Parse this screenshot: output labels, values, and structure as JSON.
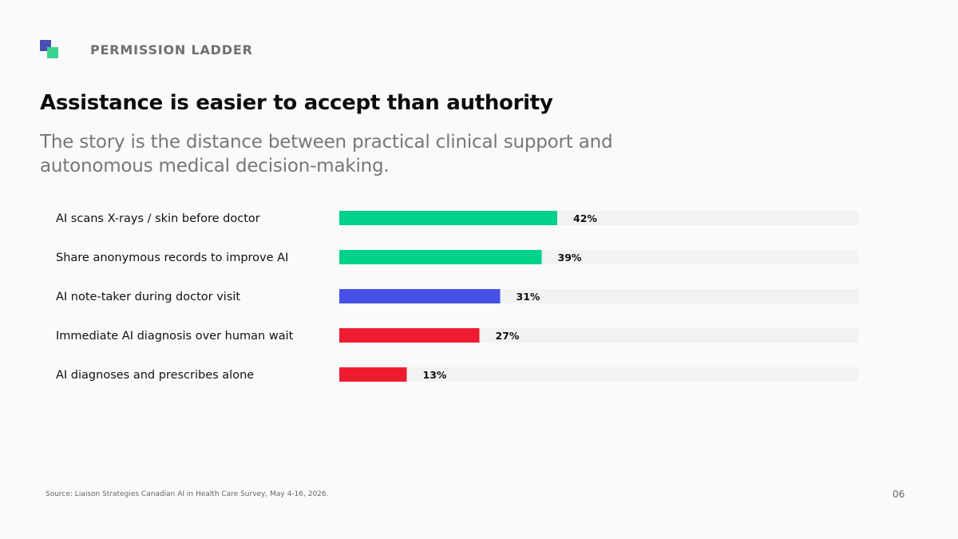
{
  "header": {
    "kicker": "PERMISSION LADDER",
    "title": "Assistance is easier to accept than authority",
    "subtitle": "The story is the distance between practical clinical support and autonomous medical decision-making."
  },
  "logo": {
    "color_primary": "#4a4fb8",
    "color_secondary": "#3ad48d"
  },
  "footer": {
    "source": "Source: Liaison Strategies Canadian AI in Health Care Survey, May 4-16, 2026.",
    "page_number": "06"
  },
  "chart_data": {
    "type": "bar",
    "orientation": "horizontal",
    "categories": [
      "AI scans X-rays / skin before doctor",
      "Share anonymous records to improve AI",
      "AI note-taker during doctor visit",
      "Immediate AI diagnosis over human wait",
      "AI diagnoses and prescribes alone"
    ],
    "values": [
      42,
      39,
      31,
      27,
      13
    ],
    "value_labels": [
      "42%",
      "39%",
      "31%",
      "27%",
      "13%"
    ],
    "bar_colors": [
      "#00d28a",
      "#00d28a",
      "#4650e6",
      "#ee1c31",
      "#ee1c31"
    ],
    "track_color": "#f1f2f2",
    "xlim": [
      0,
      100
    ],
    "grid": false,
    "legend": "none"
  }
}
